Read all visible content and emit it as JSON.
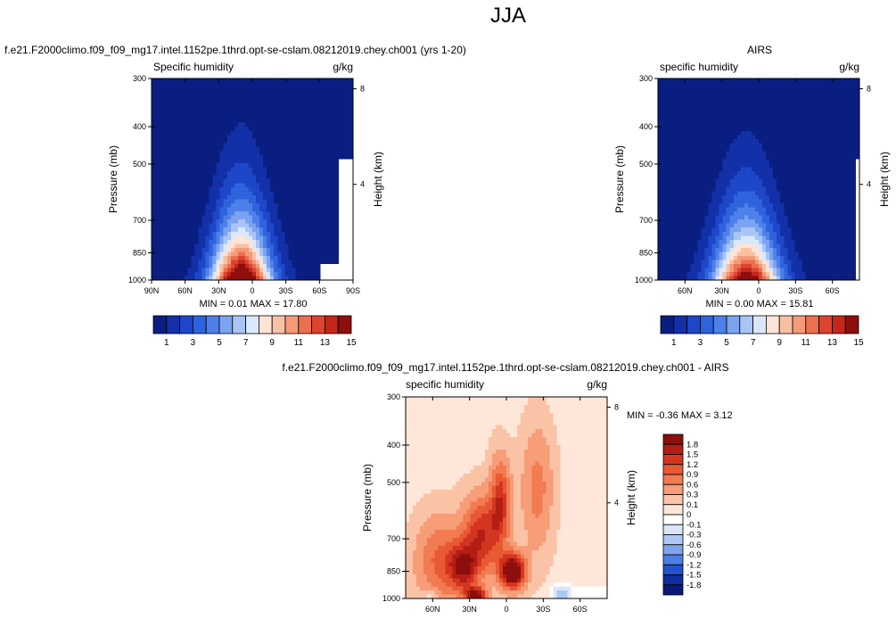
{
  "figure": {
    "title": "JJA"
  },
  "panels": {
    "model": {
      "title": "f.e21.F2000climo.f09_f09_mg17.intel.1152pe.1thrd.opt-se-cslam.08212019.chey.ch001 (yrs 1-20)",
      "variable_label": "Specific humidity",
      "units": "g/kg",
      "ylabel_left": "Pressure (mb)",
      "ylabel_right": "Height (km)",
      "pressure_ticks": [
        "300",
        "400",
        "500",
        "700",
        "850",
        "1000"
      ],
      "height_ticks": [
        "8",
        "4"
      ],
      "lat_ticks": [
        "90N",
        "60N",
        "30N",
        "0",
        "30S",
        "60S",
        "90S"
      ],
      "minmax": "MIN =   0.01   MAX =  17.80"
    },
    "obs": {
      "title": "AIRS",
      "variable_label": "specific humidity",
      "units": "g/kg",
      "ylabel_left": "Pressure (mb)",
      "ylabel_right": "Height (km)",
      "pressure_ticks": [
        "300",
        "400",
        "500",
        "700",
        "850",
        "1000"
      ],
      "height_ticks": [
        "8",
        "4"
      ],
      "lat_ticks": [
        "60N",
        "30N",
        "0",
        "30S",
        "60S"
      ],
      "minmax": "MIN =   0.00   MAX =  15.81"
    },
    "diff": {
      "title": "f.e21.F2000climo.f09_f09_mg17.intel.1152pe.1thrd.opt-se-cslam.08212019.chey.ch001 - AIRS",
      "variable_label": "specific humidity",
      "units": "g/kg",
      "ylabel_left": "Pressure (mb)",
      "ylabel_right": "Height (km)",
      "pressure_ticks": [
        "300",
        "400",
        "500",
        "700",
        "850",
        "1000"
      ],
      "height_ticks": [
        "8",
        "4"
      ],
      "lat_ticks": [
        "60N",
        "30N",
        "0",
        "30S",
        "60S"
      ],
      "minmax": "MIN = -0.36  MAX =   3.12"
    }
  },
  "colorbars": {
    "main": {
      "labels": [
        "1",
        "3",
        "5",
        "7",
        "9",
        "11",
        "13",
        "15"
      ],
      "colors": [
        "#0a1e82",
        "#1230a8",
        "#1d47c8",
        "#2f63dd",
        "#4d80e8",
        "#7aa3f0",
        "#a9c5f6",
        "#dae8fb",
        "#fde4d6",
        "#f9c0a4",
        "#f49a78",
        "#ec6f4e",
        "#dd4430",
        "#c3261b",
        "#8e0d0d"
      ]
    },
    "diff": {
      "labels": [
        "1.8",
        "1.5",
        "1.2",
        "0.9",
        "0.6",
        "0.3",
        "0.1",
        "0",
        "-0.1",
        "-0.3",
        "-0.6",
        "-0.9",
        "-1.2",
        "-1.5",
        "-1.8"
      ],
      "colors": [
        "#8e0d0d",
        "#b31d14",
        "#d33520",
        "#e85a33",
        "#f27b52",
        "#f79d78",
        "#fbc3a6",
        "#fee6d8",
        "#ffffff",
        "#dae7fb",
        "#aec8f5",
        "#7fa5ee",
        "#4c7ee4",
        "#2352cc",
        "#0f2da0",
        "#081a78"
      ]
    }
  },
  "chart_data": [
    {
      "type": "heatmap",
      "name": "model",
      "title": "f.e21.F2000climo.f09_f09_mg17.intel.1152pe.1thrd.opt-se-cslam.08212019.chey.ch001 (yrs 1-20)",
      "xlabel": "",
      "ylabel": "Pressure (mb)",
      "xlim": [
        90,
        -90
      ],
      "ylim": [
        1000,
        300
      ],
      "levels": [
        1,
        2,
        3,
        4,
        5,
        6,
        7,
        8,
        9,
        10,
        11,
        12,
        13,
        14,
        15
      ],
      "peak_latitude": 10,
      "min": 0.01,
      "max": 17.8
    },
    {
      "type": "heatmap",
      "name": "obs",
      "title": "AIRS",
      "xlabel": "",
      "ylabel": "Pressure (mb)",
      "xlim": [
        82,
        -82
      ],
      "ylim": [
        1000,
        300
      ],
      "levels": [
        1,
        2,
        3,
        4,
        5,
        6,
        7,
        8,
        9,
        10,
        11,
        12,
        13,
        14,
        15
      ],
      "peak_latitude": 10,
      "min": 0.0,
      "max": 15.81
    },
    {
      "type": "heatmap",
      "name": "diff",
      "title": "f.e21.F2000climo.f09_f09_mg17.intel.1152pe.1thrd.opt-se-cslam.08212019.chey.ch001 - AIRS",
      "xlabel": "",
      "ylabel": "Pressure (mb)",
      "xlim": [
        82,
        -82
      ],
      "ylim": [
        1000,
        300
      ],
      "levels": [
        -1.8,
        -1.5,
        -1.2,
        -0.9,
        -0.6,
        -0.3,
        -0.1,
        0,
        0.1,
        0.3,
        0.6,
        0.9,
        1.2,
        1.5,
        1.8
      ],
      "min": -0.36,
      "max": 3.12
    }
  ]
}
